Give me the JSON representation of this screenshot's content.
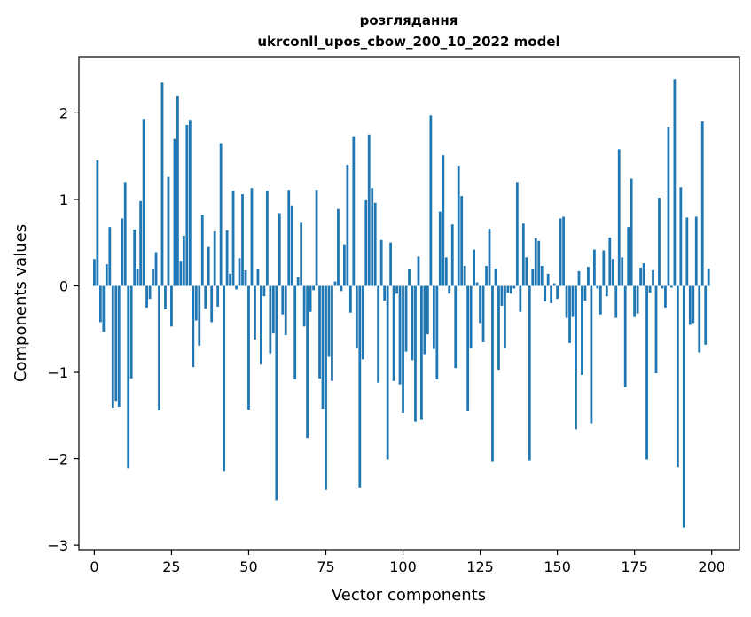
{
  "chart_data": {
    "type": "bar",
    "title_line1": "розглядання",
    "title_line2": "ukrconll_upos_cbow_200_10_2022 model",
    "xlabel": "Vector components",
    "ylabel": "Components values",
    "xlim": [
      -5,
      209
    ],
    "ylim": [
      -3.05,
      2.65
    ],
    "xticks": [
      0,
      25,
      50,
      75,
      100,
      125,
      150,
      175,
      200
    ],
    "yticks": [
      -3,
      -2,
      -1,
      0,
      1,
      2
    ],
    "ytick_labels": [
      "−3",
      "−2",
      "−1",
      "0",
      "1",
      "2"
    ],
    "grid": false,
    "bar_color": "#1f77b4",
    "values": [
      0.31,
      1.45,
      -0.42,
      -0.53,
      0.25,
      0.68,
      -1.41,
      -1.33,
      -1.4,
      0.78,
      1.2,
      -2.11,
      -1.07,
      0.65,
      0.2,
      0.98,
      1.93,
      -0.25,
      -0.15,
      0.19,
      0.39,
      -1.44,
      2.35,
      -0.27,
      1.26,
      -0.47,
      1.7,
      2.2,
      0.29,
      0.58,
      1.86,
      1.92,
      -0.94,
      -0.4,
      -0.69,
      0.82,
      -0.26,
      0.45,
      -0.42,
      0.63,
      -0.24,
      1.65,
      -2.14,
      0.64,
      0.14,
      1.1,
      -0.04,
      0.32,
      1.06,
      0.18,
      -1.43,
      1.13,
      -0.62,
      0.19,
      -0.91,
      -0.12,
      1.1,
      -0.78,
      -0.55,
      -2.48,
      0.84,
      -0.33,
      -0.57,
      1.11,
      0.93,
      -1.08,
      0.1,
      0.74,
      -0.47,
      -1.76,
      -0.3,
      -0.05,
      1.11,
      -1.07,
      -1.42,
      -2.36,
      -0.82,
      -1.1,
      0.05,
      0.89,
      -0.06,
      0.48,
      1.4,
      -0.31,
      1.73,
      -0.72,
      -2.33,
      -0.85,
      0.99,
      1.75,
      1.13,
      0.96,
      -1.12,
      0.53,
      -0.17,
      -2.01,
      0.5,
      -1.1,
      -0.09,
      -1.14,
      -1.47,
      -0.76,
      0.19,
      -0.86,
      -1.57,
      0.34,
      -1.55,
      -0.79,
      -0.56,
      1.97,
      -0.73,
      -1.08,
      0.86,
      1.51,
      0.33,
      -0.09,
      0.71,
      -0.95,
      1.39,
      1.04,
      0.23,
      -1.45,
      -0.72,
      0.42,
      0.04,
      -0.43,
      -0.65,
      0.23,
      0.66,
      -2.03,
      0.2,
      -0.97,
      -0.23,
      -0.72,
      -0.08,
      -0.09,
      -0.03,
      1.2,
      -0.3,
      0.72,
      0.33,
      -2.02,
      0.19,
      0.55,
      0.52,
      0.23,
      -0.18,
      0.14,
      -0.2,
      0.03,
      -0.15,
      0.78,
      0.8,
      -0.37,
      -0.66,
      -0.36,
      -1.66,
      0.17,
      -1.03,
      -0.17,
      0.22,
      -1.59,
      0.42,
      -0.03,
      -0.33,
      0.41,
      -0.12,
      0.56,
      0.31,
      -0.37,
      1.58,
      0.33,
      -1.17,
      0.68,
      1.24,
      -0.36,
      -0.32,
      0.21,
      0.26,
      -2.01,
      -0.08,
      0.18,
      -1.01,
      1.02,
      -0.03,
      -0.25,
      1.84,
      -0.02,
      2.39,
      -2.1,
      1.14,
      -2.8,
      0.79,
      -0.45,
      -0.43,
      0.8,
      -0.77,
      1.9,
      -0.68,
      0.2
    ]
  }
}
